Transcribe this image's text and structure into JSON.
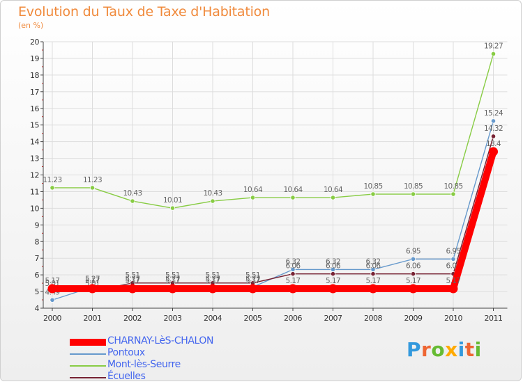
{
  "header": {
    "title": "Evolution du Taux de Taxe d'Habitation",
    "unit": "(en %)"
  },
  "brand": {
    "text": "Proxiti"
  },
  "chart_data": {
    "type": "line",
    "title": "Evolution du Taux de Taxe d'Habitation",
    "ylabel": "(en %)",
    "ylim": [
      4,
      20
    ],
    "yticks": [
      "4",
      "5",
      "6",
      "7",
      "8",
      "9",
      "10",
      "11",
      "12",
      "13",
      "14",
      "15",
      "16",
      "17",
      "18",
      "19",
      "20"
    ],
    "categories": [
      "2000",
      "2001",
      "2002",
      "2003",
      "2004",
      "2005",
      "2006",
      "2007",
      "2008",
      "2009",
      "2010",
      "2011"
    ],
    "grid": true,
    "legend_position": "bottom-left",
    "series": [
      {
        "name": "Mont-lès-Seurre",
        "color": "#88cc44",
        "values": [
          11.23,
          11.23,
          10.43,
          10.01,
          10.43,
          10.64,
          10.64,
          10.64,
          10.85,
          10.85,
          10.85,
          19.27
        ],
        "labels": [
          "11.23",
          "11.23",
          "10.43",
          "10.01",
          "10.43",
          "10.64",
          "10.64",
          "10.64",
          "10.85",
          "10.85",
          "10.85",
          "19.27"
        ]
      },
      {
        "name": "Pontoux",
        "color": "#6699cc",
        "values": [
          4.49,
          5.27,
          5.27,
          5.27,
          5.27,
          5.27,
          6.32,
          6.32,
          6.32,
          6.95,
          6.95,
          15.24
        ],
        "labels": [
          "4.49",
          "5.27",
          "5.27",
          "5.27",
          "5.27",
          "5.27",
          "6.32",
          "6.32",
          "6.32",
          "6.95",
          "6.95",
          "15.24"
        ]
      },
      {
        "name": "Écuelles",
        "color": "#772233",
        "values": [
          5.01,
          5.01,
          5.51,
          5.51,
          5.51,
          5.51,
          6.06,
          6.06,
          6.06,
          6.06,
          6.06,
          14.32
        ],
        "labels": [
          "5.01",
          "5.01",
          "5.51",
          "5.51",
          "5.51",
          "5.51",
          "6.06",
          "6.06",
          "6.06",
          "6.06",
          "6.06",
          "14.32"
        ]
      },
      {
        "name": "CHARNAY-LèS-CHALON",
        "color": "#ff0000",
        "values": [
          5.17,
          5.17,
          5.17,
          5.17,
          5.17,
          5.17,
          5.17,
          5.17,
          5.17,
          5.17,
          5.17,
          13.4
        ],
        "labels": [
          "5.17",
          "5.17",
          "5.17",
          "5.17",
          "5.17",
          "5.17",
          "5.17",
          "5.17",
          "5.17",
          "5.17",
          "5.17",
          "13.4"
        ]
      }
    ],
    "legend_order": [
      "CHARNAY-LèS-CHALON",
      "Pontoux",
      "Mont-lès-Seurre",
      "Écuelles"
    ]
  }
}
